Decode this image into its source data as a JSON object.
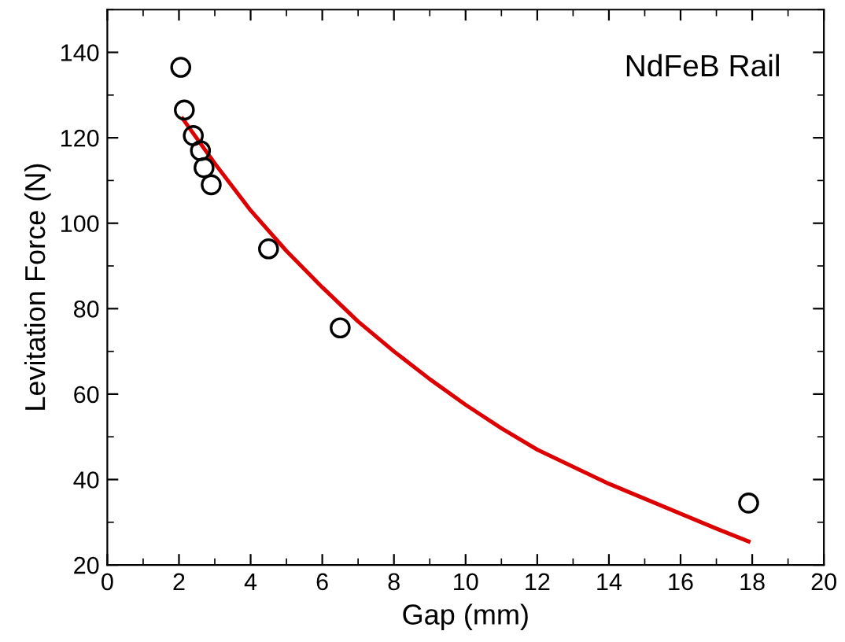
{
  "chart_data": {
    "type": "scatter",
    "xlabel": "Gap (mm)",
    "ylabel": "Levitation Force (N)",
    "annotations": [
      "NdFeB Rail"
    ],
    "xlim": [
      0,
      20
    ],
    "ylim": [
      20,
      150
    ],
    "xticks": [
      0,
      2,
      4,
      6,
      8,
      10,
      12,
      14,
      16,
      18,
      20
    ],
    "yticks": [
      20,
      40,
      60,
      80,
      100,
      120,
      140
    ],
    "grid": false,
    "legend": false,
    "series": [
      {
        "marker": "circle",
        "color": "#000000",
        "x": [
          2.05,
          2.15,
          2.4,
          2.6,
          2.7,
          2.9,
          4.5,
          6.5,
          17.9
        ],
        "values": [
          136.5,
          126.5,
          120.5,
          117,
          113,
          109,
          94,
          75.5,
          34.5
        ]
      },
      {
        "type": "line",
        "marker": "none",
        "line_style": "solid",
        "color": "#dd0000",
        "x": [
          2.1,
          3,
          4,
          5,
          6,
          7,
          8,
          9,
          10,
          11,
          12,
          13,
          14,
          15,
          16,
          17,
          17.9
        ],
        "values": [
          124.5,
          114,
          103,
          93.5,
          85,
          77,
          70,
          63.5,
          57.5,
          52,
          47,
          43,
          39,
          35.5,
          32,
          28.5,
          25.5
        ]
      }
    ]
  }
}
